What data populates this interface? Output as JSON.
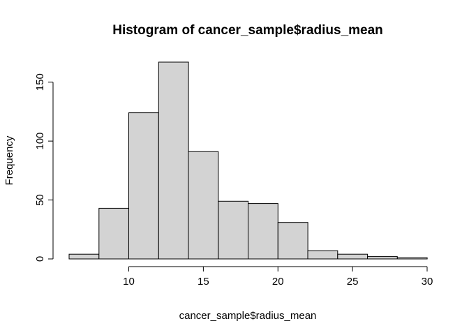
{
  "chart_data": {
    "type": "bar",
    "title": "Histogram of cancer_sample$radius_mean",
    "xlabel": "cancer_sample$radius_mean",
    "ylabel": "Frequency",
    "bins": [
      {
        "x0": 6,
        "x1": 8,
        "value": 4
      },
      {
        "x0": 8,
        "x1": 10,
        "value": 43
      },
      {
        "x0": 10,
        "x1": 12,
        "value": 124
      },
      {
        "x0": 12,
        "x1": 14,
        "value": 167
      },
      {
        "x0": 14,
        "x1": 16,
        "value": 91
      },
      {
        "x0": 16,
        "x1": 18,
        "value": 49
      },
      {
        "x0": 18,
        "x1": 20,
        "value": 47
      },
      {
        "x0": 20,
        "x1": 22,
        "value": 31
      },
      {
        "x0": 22,
        "x1": 24,
        "value": 7
      },
      {
        "x0": 24,
        "x1": 26,
        "value": 4
      },
      {
        "x0": 26,
        "x1": 28,
        "value": 2
      },
      {
        "x0": 28,
        "x1": 30,
        "value": 1
      }
    ],
    "xlim": [
      6,
      30
    ],
    "ylim": [
      0,
      167
    ],
    "xticks": [
      10,
      15,
      20,
      25,
      30
    ],
    "yticks": [
      0,
      50,
      100,
      150
    ],
    "bar_color": "#d3d3d3",
    "edge_color": "#000000",
    "grid": false,
    "legend": "none"
  }
}
